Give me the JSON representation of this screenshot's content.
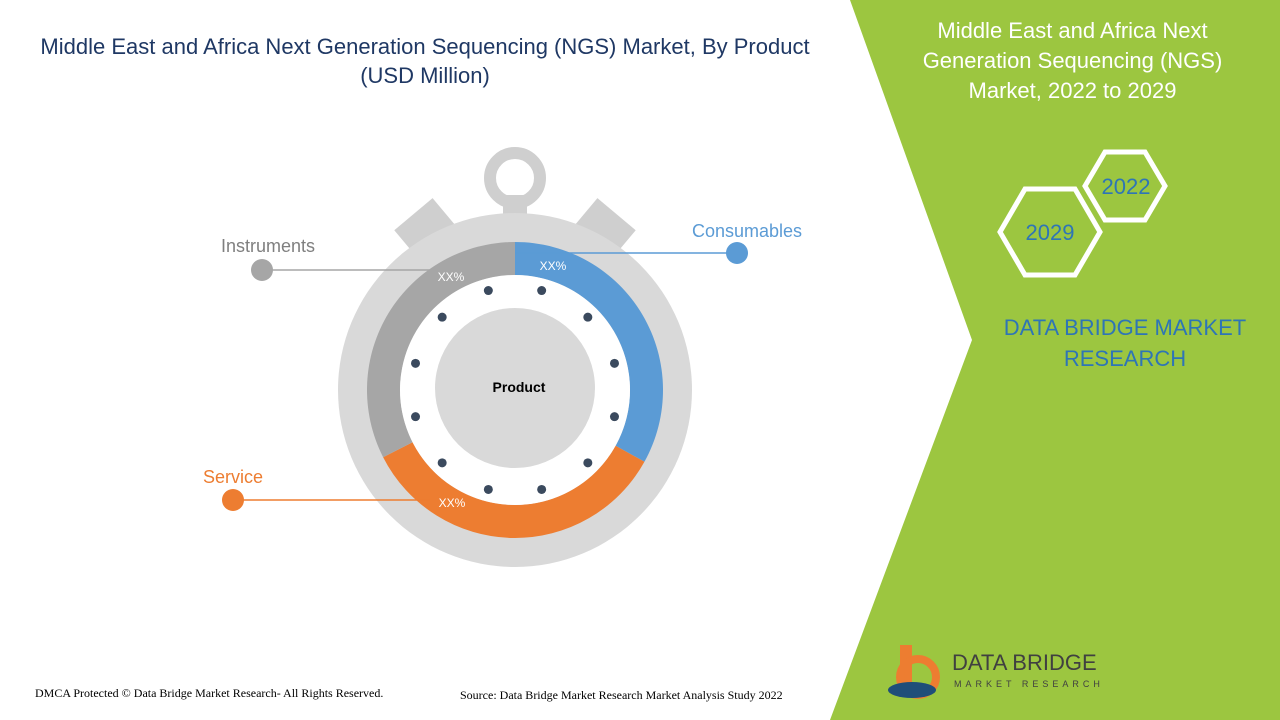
{
  "title": "Middle East and Africa Next Generation Sequencing (NGS) Market, By Product (USD Million)",
  "center_label": "Product",
  "segments": [
    {
      "name": "Consumables",
      "label": "XX%"
    },
    {
      "name": "Service",
      "label": "XX%"
    },
    {
      "name": "Instruments",
      "label": "XX%"
    }
  ],
  "side_panel": {
    "title": "Middle East and Africa Next Generation Sequencing (NGS) Market, 2022 to 2029",
    "years": [
      "2022",
      "2029"
    ],
    "brand": "DATA BRIDGE MARKET RESEARCH"
  },
  "logo": {
    "name": "DATA BRIDGE",
    "tagline": "MARKET RESEARCH"
  },
  "footer": {
    "copyright": "DMCA Protected © Data Bridge Market Research- All Rights Reserved.",
    "source": "Source: Data Bridge Market Research Market Analysis Study 2022"
  }
}
